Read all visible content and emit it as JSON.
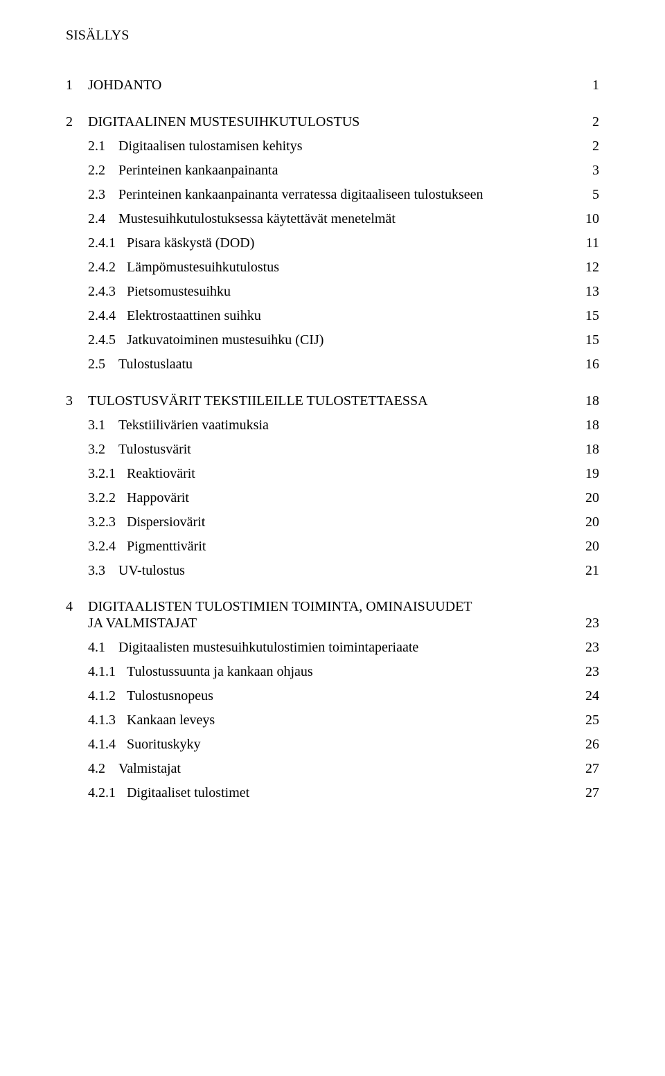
{
  "heading": "SISÄLLYS",
  "toc": [
    {
      "lvl": 1,
      "num": "1",
      "title": "JOHDANTO",
      "page": "1",
      "gap": "lg"
    },
    {
      "lvl": 1,
      "num": "2",
      "title": "DIGITAALINEN MUSTESUIHKUTULOSTUS",
      "page": "2",
      "gap": "lg"
    },
    {
      "lvl": 2,
      "num": "2.1",
      "title": "Digitaalisen tulostamisen kehitys",
      "page": "2",
      "gap": "md"
    },
    {
      "lvl": 2,
      "num": "2.2",
      "title": "Perinteinen kankaanpainanta",
      "page": "3",
      "gap": "md"
    },
    {
      "lvl": 2,
      "num": "2.3",
      "title": "Perinteinen kankaanpainanta verratessa digitaaliseen tulostukseen",
      "page": "5",
      "gap": "md"
    },
    {
      "lvl": 2,
      "num": "2.4",
      "title": "Mustesuihkutulostuksessa käytettävät menetelmät",
      "page": "10",
      "gap": "md"
    },
    {
      "lvl": 3,
      "num": "2.4.1",
      "title": "Pisara käskystä (DOD)",
      "page": "11",
      "gap": "md"
    },
    {
      "lvl": 3,
      "num": "2.4.2",
      "title": "Lämpömustesuihkutulostus",
      "page": "12",
      "gap": "md"
    },
    {
      "lvl": 3,
      "num": "2.4.3",
      "title": "Pietsomustesuihku",
      "page": "13",
      "gap": "md"
    },
    {
      "lvl": 3,
      "num": "2.4.4",
      "title": "Elektrostaattinen suihku",
      "page": "15",
      "gap": "md"
    },
    {
      "lvl": 3,
      "num": "2.4.5",
      "title": "Jatkuvatoiminen mustesuihku (CIJ)",
      "page": "15",
      "gap": "md"
    },
    {
      "lvl": 2,
      "num": "2.5",
      "title": "Tulostuslaatu",
      "page": "16",
      "gap": "md"
    },
    {
      "lvl": 1,
      "num": "3",
      "title": "TULOSTUSVÄRIT TEKSTIILEILLE TULOSTETTAESSA",
      "page": "18",
      "gap": "lg"
    },
    {
      "lvl": 2,
      "num": "3.1",
      "title": "Tekstiilivärien vaatimuksia",
      "page": "18",
      "gap": "md"
    },
    {
      "lvl": 2,
      "num": "3.2",
      "title": "Tulostusvärit",
      "page": "18",
      "gap": "md"
    },
    {
      "lvl": 3,
      "num": "3.2.1",
      "title": "Reaktiovärit",
      "page": "19",
      "gap": "md"
    },
    {
      "lvl": 3,
      "num": "3.2.2",
      "title": "Happovärit",
      "page": "20",
      "gap": "md"
    },
    {
      "lvl": 3,
      "num": "3.2.3",
      "title": "Dispersiovärit",
      "page": "20",
      "gap": "md"
    },
    {
      "lvl": 3,
      "num": "3.2.4",
      "title": "Pigmenttivärit",
      "page": "20",
      "gap": "md"
    },
    {
      "lvl": 2,
      "num": "3.3",
      "title": "UV-tulostus",
      "page": "21",
      "gap": "md"
    }
  ],
  "section4": {
    "num": "4",
    "title_line1": "DIGITAALISTEN TULOSTIMIEN TOIMINTA, OMINAISUUDET",
    "title_line2": "JA VALMISTAJAT",
    "page": "23",
    "children": [
      {
        "lvl": 2,
        "num": "4.1",
        "title": "Digitaalisten mustesuihkutulostimien toimintaperiaate",
        "page": "23",
        "gap": "md"
      },
      {
        "lvl": 3,
        "num": "4.1.1",
        "title": "Tulostussuunta ja kankaan ohjaus",
        "page": "23",
        "gap": "md"
      },
      {
        "lvl": 3,
        "num": "4.1.2",
        "title": "Tulostusnopeus",
        "page": "24",
        "gap": "md"
      },
      {
        "lvl": 3,
        "num": "4.1.3",
        "title": "Kankaan leveys",
        "page": "25",
        "gap": "md"
      },
      {
        "lvl": 3,
        "num": "4.1.4",
        "title": "Suorituskyky",
        "page": "26",
        "gap": "md"
      },
      {
        "lvl": 2,
        "num": "4.2",
        "title": "Valmistajat",
        "page": "27",
        "gap": "md"
      },
      {
        "lvl": 3,
        "num": "4.2.1",
        "title": "Digitaaliset tulostimet",
        "page": "27",
        "gap": "md"
      }
    ]
  }
}
